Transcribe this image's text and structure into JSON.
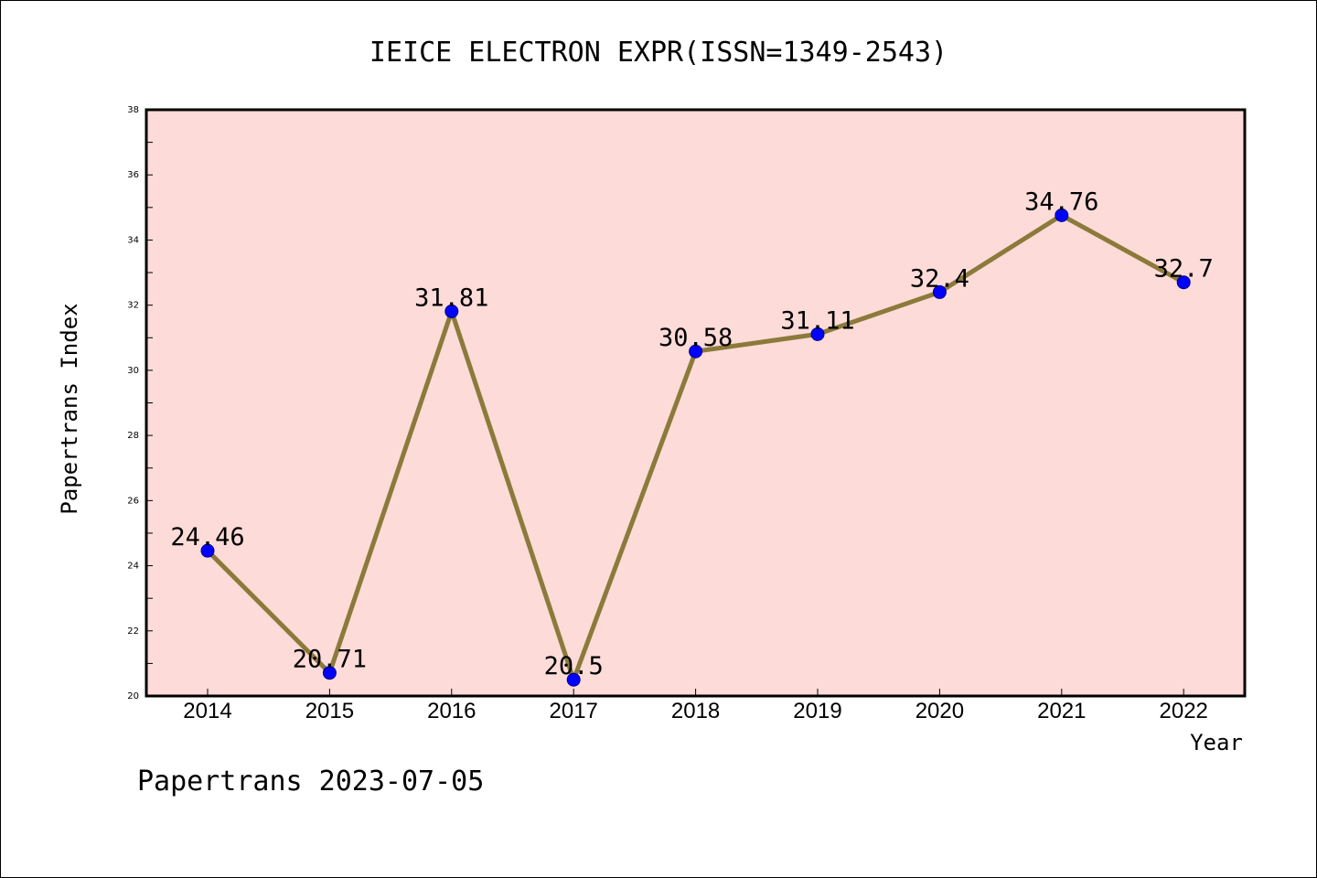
{
  "chart_data": {
    "type": "line",
    "title": "IEICE ELECTRON EXPR(ISSN=1349-2543)",
    "xlabel": "Year",
    "ylabel": "Papertrans Index",
    "ylim": [
      20,
      38
    ],
    "y_ticks": [
      20,
      22,
      24,
      26,
      28,
      30,
      32,
      34,
      36,
      38
    ],
    "categories": [
      "2014",
      "2015",
      "2016",
      "2017",
      "2018",
      "2019",
      "2020",
      "2021",
      "2022"
    ],
    "series": [
      {
        "values": [
          24.46,
          20.71,
          31.81,
          20.5,
          30.58,
          31.11,
          32.4,
          34.76,
          32.7
        ],
        "data_labels": [
          "24.46",
          "20.71",
          "31.81",
          "20.5",
          "30.58",
          "31.11",
          "32.4",
          "34.76",
          "32.7"
        ]
      }
    ],
    "grid": false,
    "plot_background": "#fddbd8",
    "line_color": "#8b7a3a",
    "marker_color": "#0000ff"
  },
  "footer": "Papertrans 2023-07-05"
}
